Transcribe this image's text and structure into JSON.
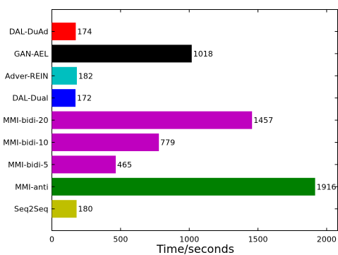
{
  "chart_data": {
    "type": "bar",
    "orientation": "horizontal",
    "title": "",
    "xlabel": "Time/seconds",
    "ylabel": "",
    "xlim": [
      0,
      2080
    ],
    "xticks": [
      0,
      500,
      1000,
      1500,
      2000
    ],
    "grid": false,
    "legend": "none",
    "categories": [
      "DAL-DuAd",
      "GAN-AEL",
      "Adver-REIN",
      "DAL-Dual",
      "MMI-bidi-20",
      "MMI-bidi-10",
      "MMI-bidi-5",
      "MMI-anti",
      "Seq2Seq"
    ],
    "values": [
      174,
      1018,
      182,
      172,
      1457,
      779,
      465,
      1916,
      180
    ],
    "value_labels": [
      "174",
      "1018",
      "182",
      "172",
      "1457",
      "779",
      "465",
      "1916",
      "180"
    ],
    "colors": [
      "#ff0000",
      "#000000",
      "#00bfbf",
      "#0000ff",
      "#bf00bf",
      "#bf00bf",
      "#bf00bf",
      "#008000",
      "#bfbf00"
    ]
  }
}
